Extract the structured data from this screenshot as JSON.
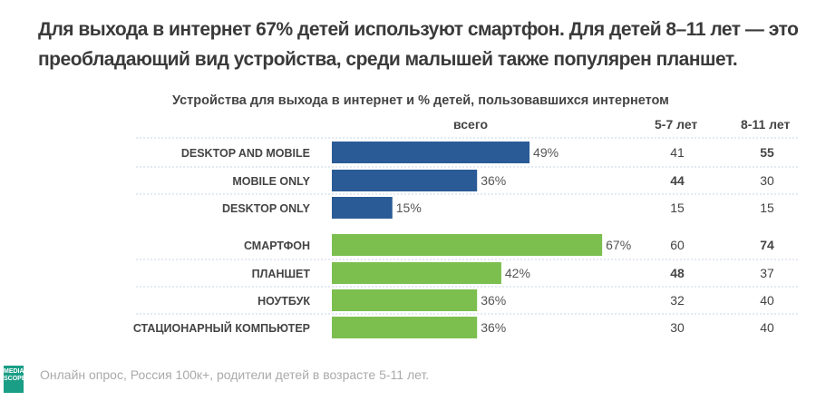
{
  "title": "Для выхода в интернет 67% детей используют смартфон. Для детей 8–11 лет — это преобладающий вид устройства, среди малышей также популярен планшет.",
  "chart_data": {
    "type": "bar",
    "title": "Устройства для выхода в интернет и % детей, пользовавшихся интернетом",
    "column_headers": {
      "total": "всего",
      "age_5_7": "5-7 лет",
      "age_8_11": "8-11 лет"
    },
    "categories": [
      "DESKTOP AND MOBILE",
      "MOBILE ONLY",
      "DESKTOP ONLY",
      "СМАРТФОН",
      "ПЛАНШЕТ",
      "НОУТБУК",
      "СТАЦИОНАРНЫЙ КОМПЬЮТЕР"
    ],
    "series": [
      {
        "values": [
          49,
          36,
          15,
          67,
          42,
          36,
          36
        ]
      }
    ],
    "colors": [
      "#2a5b96",
      "#2a5b96",
      "#2a5b96",
      "#7cbf4f",
      "#7cbf4f",
      "#7cbf4f",
      "#7cbf4f"
    ],
    "age_5_7": [
      41,
      44,
      15,
      60,
      48,
      32,
      30
    ],
    "age_8_11": [
      55,
      30,
      15,
      74,
      37,
      40,
      40
    ],
    "bold_5_7": [
      false,
      true,
      false,
      false,
      true,
      false,
      false
    ],
    "bold_8_11": [
      true,
      false,
      false,
      true,
      false,
      false,
      false
    ],
    "value_suffix": "%"
  },
  "source": "Онлайн опрос, Россия 100к+, родители детей в возрасте 5-11 лет.",
  "logo": "MEDIASCOPE"
}
